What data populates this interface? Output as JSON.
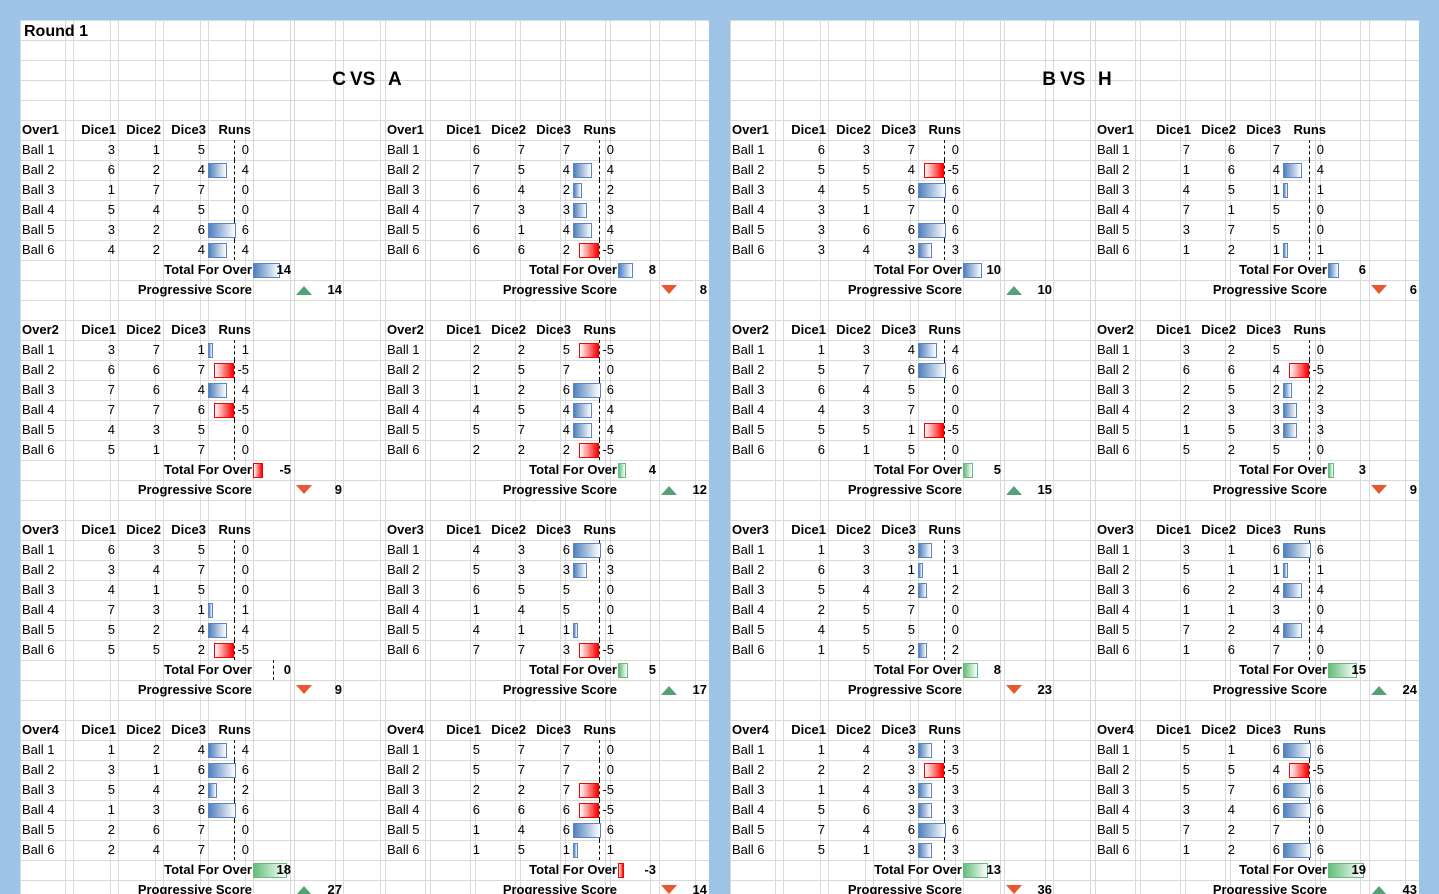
{
  "round_title": "Round 1",
  "labels": {
    "dice1": "Dice1",
    "dice2": "Dice2",
    "dice3": "Dice3",
    "runs": "Runs",
    "total": "Total For Over",
    "progressive": "Progressive Score",
    "vs": "VS"
  },
  "colors": {
    "positive_bar": "#4f81bd",
    "negative_bar": "#ff0000",
    "total_positive": "#63be7b",
    "arrow_up": "#54a179",
    "arrow_down": "#e8572e"
  },
  "matches": [
    {
      "teams": [
        {
          "name": "C",
          "overs": [
            {
              "label": "Over1",
              "balls": [
                [
                  3,
                  1,
                  5,
                  0
                ],
                [
                  6,
                  2,
                  4,
                  4
                ],
                [
                  1,
                  7,
                  7,
                  0
                ],
                [
                  5,
                  4,
                  5,
                  0
                ],
                [
                  3,
                  2,
                  6,
                  6
                ],
                [
                  4,
                  2,
                  4,
                  4
                ]
              ],
              "total": 14,
              "progressive": 14,
              "trend": "up"
            },
            {
              "label": "Over2",
              "balls": [
                [
                  3,
                  7,
                  1,
                  1
                ],
                [
                  6,
                  6,
                  7,
                  -5
                ],
                [
                  7,
                  6,
                  4,
                  4
                ],
                [
                  7,
                  7,
                  6,
                  -5
                ],
                [
                  4,
                  3,
                  5,
                  0
                ],
                [
                  5,
                  1,
                  7,
                  0
                ]
              ],
              "total": -5,
              "progressive": 9,
              "trend": "down"
            },
            {
              "label": "Over3",
              "balls": [
                [
                  6,
                  3,
                  5,
                  0
                ],
                [
                  3,
                  4,
                  7,
                  0
                ],
                [
                  4,
                  1,
                  5,
                  0
                ],
                [
                  7,
                  3,
                  1,
                  1
                ],
                [
                  5,
                  2,
                  4,
                  4
                ],
                [
                  5,
                  5,
                  2,
                  -5
                ]
              ],
              "total": 0,
              "progressive": 9,
              "trend": "down"
            },
            {
              "label": "Over4",
              "balls": [
                [
                  1,
                  2,
                  4,
                  4
                ],
                [
                  3,
                  1,
                  6,
                  6
                ],
                [
                  5,
                  4,
                  2,
                  2
                ],
                [
                  1,
                  3,
                  6,
                  6
                ],
                [
                  2,
                  6,
                  7,
                  0
                ],
                [
                  2,
                  4,
                  7,
                  0
                ]
              ],
              "total": 18,
              "progressive": 27,
              "trend": "up"
            }
          ]
        },
        {
          "name": "A",
          "overs": [
            {
              "label": "Over1",
              "balls": [
                [
                  6,
                  7,
                  7,
                  0
                ],
                [
                  7,
                  5,
                  4,
                  4
                ],
                [
                  6,
                  4,
                  2,
                  2
                ],
                [
                  7,
                  3,
                  3,
                  3
                ],
                [
                  6,
                  1,
                  4,
                  4
                ],
                [
                  6,
                  6,
                  2,
                  -5
                ]
              ],
              "total": 8,
              "progressive": 8,
              "trend": "down"
            },
            {
              "label": "Over2",
              "balls": [
                [
                  2,
                  2,
                  5,
                  -5
                ],
                [
                  2,
                  5,
                  7,
                  0
                ],
                [
                  1,
                  2,
                  6,
                  6
                ],
                [
                  4,
                  5,
                  4,
                  4
                ],
                [
                  5,
                  7,
                  4,
                  4
                ],
                [
                  2,
                  2,
                  2,
                  -5
                ]
              ],
              "total": 4,
              "progressive": 12,
              "trend": "up"
            },
            {
              "label": "Over3",
              "balls": [
                [
                  4,
                  3,
                  6,
                  6
                ],
                [
                  5,
                  3,
                  3,
                  3
                ],
                [
                  6,
                  5,
                  5,
                  0
                ],
                [
                  1,
                  4,
                  5,
                  0
                ],
                [
                  4,
                  1,
                  1,
                  1
                ],
                [
                  7,
                  7,
                  3,
                  -5
                ]
              ],
              "total": 5,
              "progressive": 17,
              "trend": "up"
            },
            {
              "label": "Over4",
              "balls": [
                [
                  5,
                  7,
                  7,
                  0
                ],
                [
                  5,
                  7,
                  7,
                  0
                ],
                [
                  2,
                  2,
                  7,
                  -5
                ],
                [
                  6,
                  6,
                  6,
                  -5
                ],
                [
                  1,
                  4,
                  6,
                  6
                ],
                [
                  1,
                  5,
                  1,
                  1
                ]
              ],
              "total": -3,
              "progressive": 14,
              "trend": "down"
            }
          ]
        }
      ]
    },
    {
      "teams": [
        {
          "name": "B",
          "overs": [
            {
              "label": "Over1",
              "balls": [
                [
                  6,
                  3,
                  7,
                  0
                ],
                [
                  5,
                  5,
                  4,
                  -5
                ],
                [
                  4,
                  5,
                  6,
                  6
                ],
                [
                  3,
                  1,
                  7,
                  0
                ],
                [
                  3,
                  6,
                  6,
                  6
                ],
                [
                  3,
                  4,
                  3,
                  3
                ]
              ],
              "total": 10,
              "progressive": 10,
              "trend": "up"
            },
            {
              "label": "Over2",
              "balls": [
                [
                  1,
                  3,
                  4,
                  4
                ],
                [
                  5,
                  7,
                  6,
                  6
                ],
                [
                  6,
                  4,
                  5,
                  0
                ],
                [
                  4,
                  3,
                  7,
                  0
                ],
                [
                  5,
                  5,
                  1,
                  -5
                ],
                [
                  6,
                  1,
                  5,
                  0
                ]
              ],
              "total": 5,
              "progressive": 15,
              "trend": "up"
            },
            {
              "label": "Over3",
              "balls": [
                [
                  1,
                  3,
                  3,
                  3
                ],
                [
                  6,
                  3,
                  1,
                  1
                ],
                [
                  5,
                  4,
                  2,
                  2
                ],
                [
                  2,
                  5,
                  7,
                  0
                ],
                [
                  4,
                  5,
                  5,
                  0
                ],
                [
                  1,
                  5,
                  2,
                  2
                ]
              ],
              "total": 8,
              "progressive": 23,
              "trend": "down"
            },
            {
              "label": "Over4",
              "balls": [
                [
                  1,
                  4,
                  3,
                  3
                ],
                [
                  2,
                  2,
                  3,
                  -5
                ],
                [
                  1,
                  4,
                  3,
                  3
                ],
                [
                  5,
                  6,
                  3,
                  3
                ],
                [
                  7,
                  4,
                  6,
                  6
                ],
                [
                  5,
                  1,
                  3,
                  3
                ]
              ],
              "total": 13,
              "progressive": 36,
              "trend": "down"
            }
          ]
        },
        {
          "name": "H",
          "overs": [
            {
              "label": "Over1",
              "balls": [
                [
                  7,
                  6,
                  7,
                  0
                ],
                [
                  1,
                  6,
                  4,
                  4
                ],
                [
                  4,
                  5,
                  1,
                  1
                ],
                [
                  7,
                  1,
                  5,
                  0
                ],
                [
                  3,
                  7,
                  5,
                  0
                ],
                [
                  1,
                  2,
                  1,
                  1
                ]
              ],
              "total": 6,
              "progressive": 6,
              "trend": "down"
            },
            {
              "label": "Over2",
              "balls": [
                [
                  3,
                  2,
                  5,
                  0
                ],
                [
                  6,
                  6,
                  4,
                  -5
                ],
                [
                  2,
                  5,
                  2,
                  2
                ],
                [
                  2,
                  3,
                  3,
                  3
                ],
                [
                  1,
                  5,
                  3,
                  3
                ],
                [
                  5,
                  2,
                  5,
                  0
                ]
              ],
              "total": 3,
              "progressive": 9,
              "trend": "down"
            },
            {
              "label": "Over3",
              "balls": [
                [
                  3,
                  1,
                  6,
                  6
                ],
                [
                  5,
                  1,
                  1,
                  1
                ],
                [
                  6,
                  2,
                  4,
                  4
                ],
                [
                  1,
                  1,
                  3,
                  0
                ],
                [
                  7,
                  2,
                  4,
                  4
                ],
                [
                  1,
                  6,
                  7,
                  0
                ]
              ],
              "total": 15,
              "progressive": 24,
              "trend": "up"
            },
            {
              "label": "Over4",
              "balls": [
                [
                  5,
                  1,
                  6,
                  6
                ],
                [
                  5,
                  5,
                  4,
                  -5
                ],
                [
                  5,
                  7,
                  6,
                  6
                ],
                [
                  3,
                  4,
                  6,
                  6
                ],
                [
                  7,
                  2,
                  7,
                  0
                ],
                [
                  1,
                  2,
                  6,
                  6
                ]
              ],
              "total": 19,
              "progressive": 43,
              "trend": "up"
            }
          ]
        }
      ]
    }
  ]
}
